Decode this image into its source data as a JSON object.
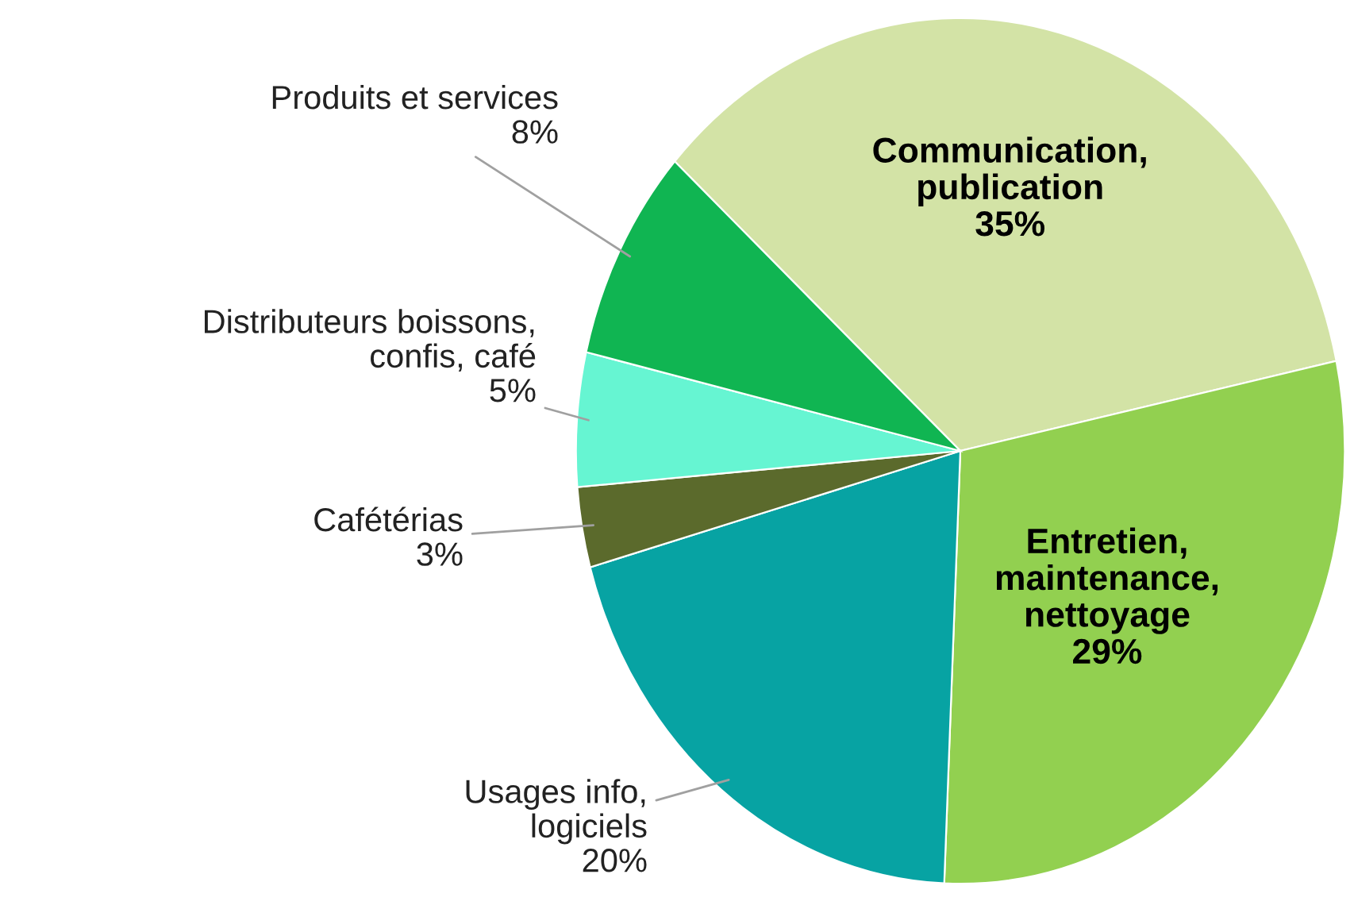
{
  "chart_data": {
    "type": "pie",
    "categories": [
      "Communication,\npublication",
      "Entretien,\nmaintenance,\nnettoyage",
      "Usages info,\nlogiciels",
      "Cafétérias",
      "Distributeurs boissons,\nconfis, café",
      "Produits et services"
    ],
    "values": [
      35,
      29,
      20,
      3,
      5,
      8
    ],
    "value_labels": [
      "35%",
      "29%",
      "20%",
      "3%",
      "5%",
      "8%"
    ],
    "colors": [
      "#d3e3a6",
      "#92d050",
      "#07a3a3",
      "#5b6a2c",
      "#66f5d2",
      "#10b552"
    ],
    "legend": false
  }
}
